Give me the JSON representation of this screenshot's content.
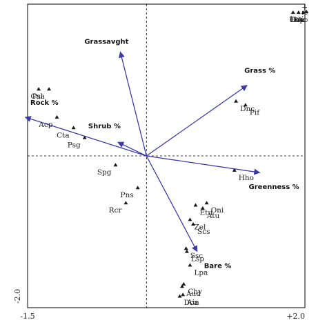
{
  "chart_data": {
    "type": "scatter",
    "title": "",
    "xlabel": "",
    "ylabel": "",
    "xlim": [
      -1.5,
      2.0
    ],
    "ylim": [
      -2.0,
      2.0
    ],
    "x_ticks": [
      "-1.5",
      "+2.0"
    ],
    "y_ticks": [
      "-2.0",
      "+2.0"
    ],
    "grid": false,
    "zero_lines": true,
    "colors": {
      "vector": "#3b3ba8",
      "marker": "#1a1a1a",
      "text": "#222222"
    },
    "vectors": [
      {
        "name": "Grassavght",
        "x": -0.33,
        "y": 1.37
      },
      {
        "name": "Rock %",
        "x": -1.53,
        "y": 0.51
      },
      {
        "name": "Shrub %",
        "x": -0.36,
        "y": 0.18
      },
      {
        "name": "Grass %",
        "x": 1.27,
        "y": 0.93
      },
      {
        "name": "Greenness %",
        "x": 1.43,
        "y": -0.22
      },
      {
        "name": "Bare %",
        "x": 0.64,
        "y": -1.26
      }
    ],
    "sites": [
      {
        "name": "Hsp",
        "x": 1.85,
        "y": 1.89
      },
      {
        "name": "Tbu",
        "x": 1.92,
        "y": 1.89
      },
      {
        "name": "Oda",
        "x": 1.98,
        "y": 1.89
      },
      {
        "name": "Lca",
        "x": 2.02,
        "y": 1.9
      },
      {
        "name": "Cal",
        "x": -1.36,
        "y": 0.88
      },
      {
        "name": "Psa",
        "x": -1.23,
        "y": 0.88
      },
      {
        "name": "Acp",
        "x": -1.13,
        "y": 0.51
      },
      {
        "name": "Cta",
        "x": -0.92,
        "y": 0.37
      },
      {
        "name": "Psg",
        "x": -0.78,
        "y": 0.24
      },
      {
        "name": "Spg",
        "x": -0.39,
        "y": -0.12
      },
      {
        "name": "Pns",
        "x": -0.11,
        "y": -0.42
      },
      {
        "name": "Rcr",
        "x": -0.26,
        "y": -0.62
      },
      {
        "name": "Dnc",
        "x": 1.13,
        "y": 0.72
      },
      {
        "name": "Pif",
        "x": 1.25,
        "y": 0.67
      },
      {
        "name": "Hho",
        "x": 1.11,
        "y": -0.19
      },
      {
        "name": "Etu",
        "x": 0.62,
        "y": -0.65
      },
      {
        "name": "Atu",
        "x": 0.71,
        "y": -0.69
      },
      {
        "name": "Oni",
        "x": 0.76,
        "y": -0.62
      },
      {
        "name": "Zel",
        "x": 0.55,
        "y": -0.84
      },
      {
        "name": "Scs",
        "x": 0.59,
        "y": -0.9
      },
      {
        "name": "Ssc",
        "x": 0.5,
        "y": -1.22
      },
      {
        "name": "Lsp",
        "x": 0.51,
        "y": -1.26
      },
      {
        "name": "Lpa",
        "x": 0.55,
        "y": -1.44
      },
      {
        "name": "Chy",
        "x": 0.47,
        "y": -1.69
      },
      {
        "name": "Aud",
        "x": 0.45,
        "y": -1.72
      },
      {
        "name": "Ain",
        "x": 0.46,
        "y": -1.83
      },
      {
        "name": "Dca",
        "x": 0.42,
        "y": -1.85
      }
    ]
  }
}
